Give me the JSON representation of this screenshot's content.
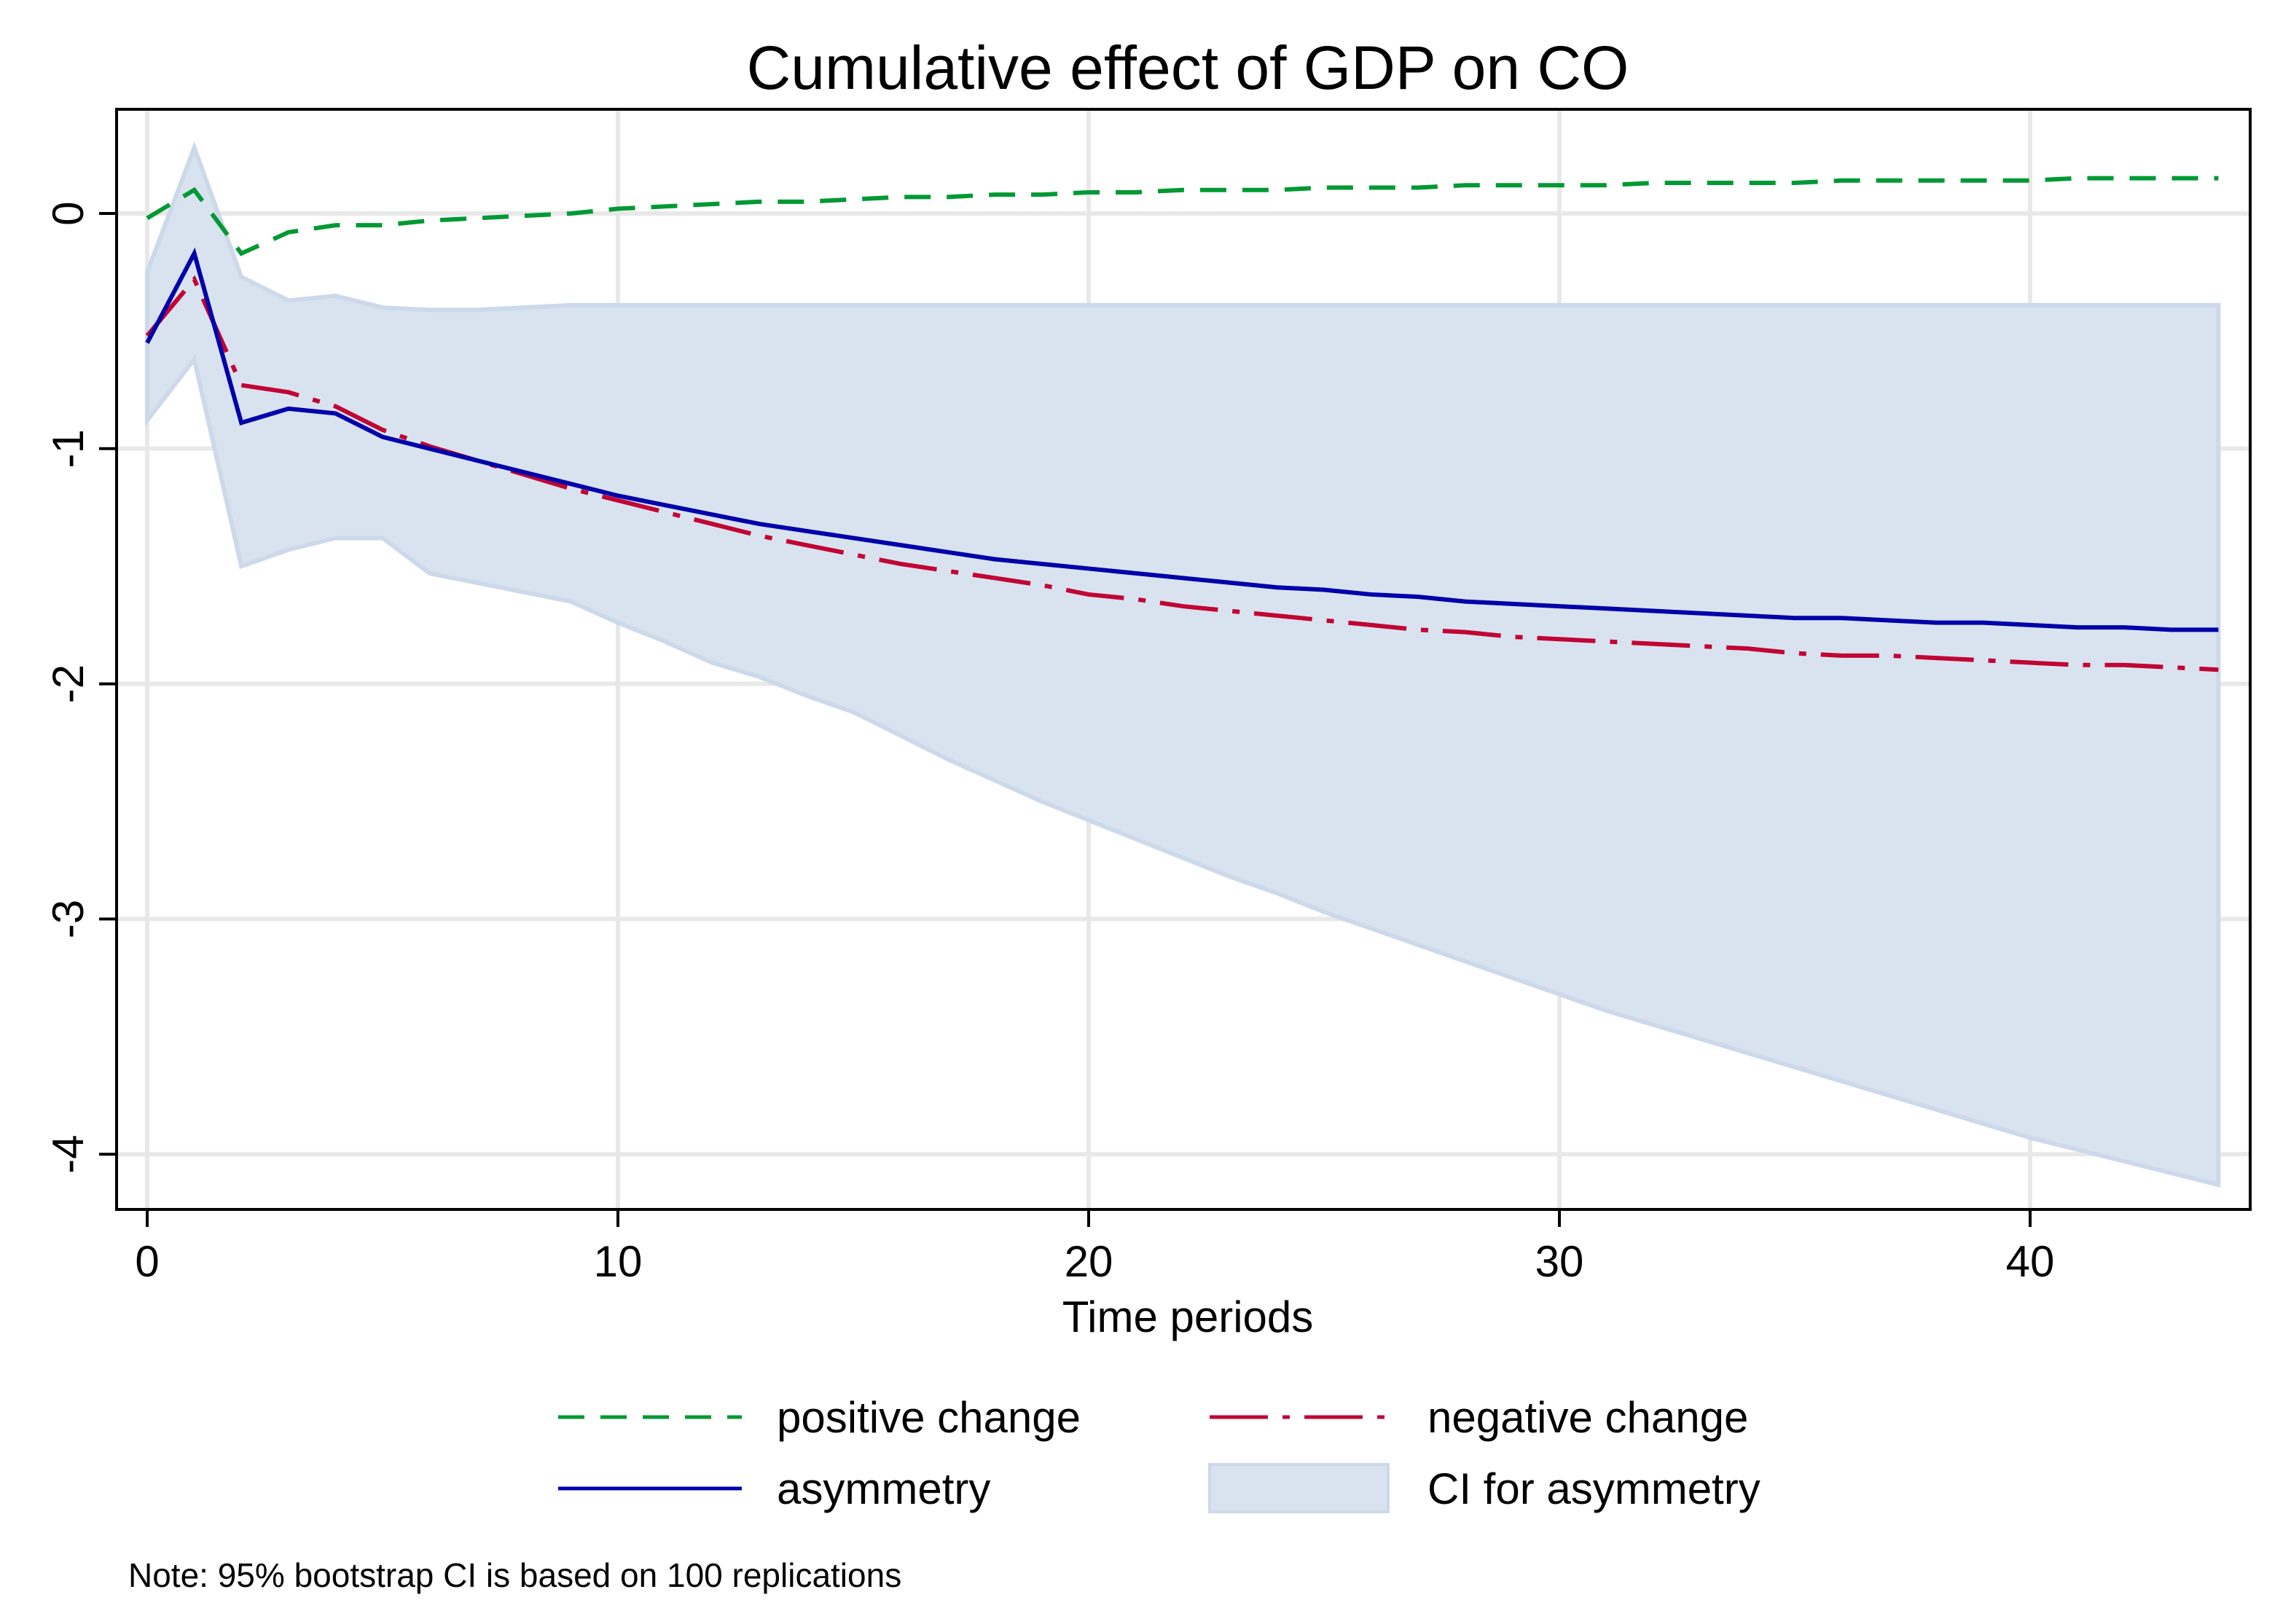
{
  "chart_data": {
    "type": "line",
    "title": "Cumulative effect of GDP on CO",
    "xlabel": "Time periods",
    "ylabel": "",
    "xlim": [
      -0.7,
      44.5
    ],
    "ylim": [
      -4.25,
      0.4
    ],
    "xticks": [
      0,
      10,
      20,
      30,
      40
    ],
    "yticks": [
      0,
      -1,
      -2,
      -3,
      -4
    ],
    "grid": true,
    "legend_position": "bottom",
    "x": [
      0,
      1,
      2,
      3,
      4,
      5,
      6,
      7,
      8,
      9,
      10,
      11,
      12,
      13,
      14,
      15,
      16,
      17,
      18,
      19,
      20,
      21,
      22,
      23,
      24,
      25,
      26,
      27,
      28,
      29,
      30,
      31,
      32,
      33,
      34,
      35,
      36,
      37,
      38,
      39,
      40,
      41,
      42,
      43,
      44
    ],
    "series": [
      {
        "name": "positive change",
        "color": "#009933",
        "dash": "short",
        "values": [
          -0.02,
          0.1,
          -0.17,
          -0.08,
          -0.05,
          -0.05,
          -0.03,
          -0.02,
          -0.01,
          0.0,
          0.02,
          0.03,
          0.04,
          0.05,
          0.05,
          0.06,
          0.07,
          0.07,
          0.08,
          0.08,
          0.09,
          0.09,
          0.1,
          0.1,
          0.1,
          0.11,
          0.11,
          0.11,
          0.12,
          0.12,
          0.12,
          0.12,
          0.13,
          0.13,
          0.13,
          0.13,
          0.14,
          0.14,
          0.14,
          0.14,
          0.14,
          0.15,
          0.15,
          0.15,
          0.15
        ]
      },
      {
        "name": "negative change",
        "color": "#c10534",
        "dash": "longdot",
        "values": [
          -0.52,
          -0.28,
          -0.73,
          -0.76,
          -0.82,
          -0.92,
          -0.99,
          -1.05,
          -1.11,
          -1.17,
          -1.22,
          -1.27,
          -1.32,
          -1.37,
          -1.41,
          -1.45,
          -1.49,
          -1.52,
          -1.55,
          -1.58,
          -1.62,
          -1.64,
          -1.67,
          -1.69,
          -1.71,
          -1.73,
          -1.75,
          -1.77,
          -1.78,
          -1.8,
          -1.81,
          -1.82,
          -1.83,
          -1.84,
          -1.85,
          -1.87,
          -1.88,
          -1.88,
          -1.89,
          -1.9,
          -1.91,
          -1.92,
          -1.92,
          -1.93,
          -1.94
        ]
      },
      {
        "name": "asymmetry",
        "color": "#0000aa",
        "dash": "solid",
        "values": [
          -0.55,
          -0.17,
          -0.89,
          -0.83,
          -0.85,
          -0.95,
          -1.0,
          -1.05,
          -1.1,
          -1.15,
          -1.2,
          -1.24,
          -1.28,
          -1.32,
          -1.35,
          -1.38,
          -1.41,
          -1.44,
          -1.47,
          -1.49,
          -1.51,
          -1.53,
          -1.55,
          -1.57,
          -1.59,
          -1.6,
          -1.62,
          -1.63,
          -1.65,
          -1.66,
          -1.67,
          -1.68,
          -1.69,
          -1.7,
          -1.71,
          -1.72,
          -1.72,
          -1.73,
          -1.74,
          -1.74,
          -1.75,
          -1.76,
          -1.76,
          -1.77,
          -1.77
        ]
      }
    ],
    "band": {
      "name": "CI for asymmetry",
      "color": "#d9e3ef",
      "upper": [
        -0.25,
        0.28,
        -0.27,
        -0.37,
        -0.35,
        -0.4,
        -0.41,
        -0.41,
        -0.4,
        -0.39,
        -0.39,
        -0.39,
        -0.39,
        -0.39,
        -0.39,
        -0.39,
        -0.39,
        -0.39,
        -0.39,
        -0.39,
        -0.39,
        -0.39,
        -0.39,
        -0.39,
        -0.39,
        -0.39,
        -0.39,
        -0.39,
        -0.39,
        -0.39,
        -0.39,
        -0.39,
        -0.39,
        -0.39,
        -0.39,
        -0.39,
        -0.39,
        -0.39,
        -0.39,
        -0.39,
        -0.39,
        -0.39,
        -0.39,
        -0.39,
        -0.39
      ],
      "lower": [
        -0.88,
        -0.62,
        -1.5,
        -1.43,
        -1.38,
        -1.38,
        -1.53,
        -1.57,
        -1.61,
        -1.65,
        -1.74,
        -1.82,
        -1.91,
        -1.97,
        -2.05,
        -2.12,
        -2.22,
        -2.32,
        -2.41,
        -2.5,
        -2.58,
        -2.66,
        -2.74,
        -2.82,
        -2.89,
        -2.97,
        -3.04,
        -3.11,
        -3.18,
        -3.25,
        -3.32,
        -3.39,
        -3.45,
        -3.51,
        -3.57,
        -3.63,
        -3.69,
        -3.75,
        -3.81,
        -3.87,
        -3.93,
        -3.98,
        -4.03,
        -4.08,
        -4.13
      ]
    },
    "legend": [
      "positive change",
      "negative change",
      "asymmetry",
      "CI for asymmetry"
    ],
    "note": "Note: 95% bootstrap CI is based on 100 replications"
  }
}
